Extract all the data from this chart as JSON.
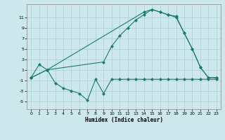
{
  "line1_x": [
    0,
    1,
    2,
    3,
    4,
    5,
    6,
    7,
    8,
    9,
    10,
    11,
    12,
    13,
    14,
    15,
    16,
    17,
    18,
    19,
    20,
    21,
    22,
    23
  ],
  "line1_y": [
    -0.5,
    2.0,
    1.0,
    -1.5,
    -2.5,
    -3.0,
    -3.5,
    -4.8,
    -0.8,
    -3.5,
    -0.8,
    -0.8,
    -0.8,
    -0.8,
    -0.8,
    -0.8,
    -0.8,
    -0.8,
    -0.8,
    -0.8,
    -0.8,
    -0.8,
    -0.8,
    -0.8
  ],
  "line2_x": [
    0,
    2,
    9,
    10,
    11,
    12,
    13,
    14,
    15,
    16,
    17,
    18,
    19,
    20,
    21,
    22,
    23
  ],
  "line2_y": [
    -0.5,
    1.0,
    2.5,
    5.5,
    7.5,
    9.0,
    10.5,
    11.5,
    12.5,
    12.0,
    11.5,
    11.0,
    8.0,
    5.0,
    1.5,
    -0.5,
    -0.5
  ],
  "line3_x": [
    0,
    2,
    14,
    15,
    16,
    17,
    18,
    19,
    20,
    21,
    22,
    23
  ],
  "line3_y": [
    -0.5,
    1.0,
    12.0,
    12.5,
    12.0,
    11.5,
    11.2,
    8.0,
    5.0,
    1.5,
    -0.5,
    -0.5
  ],
  "line_color": "#1a7a6e",
  "bg_color": "#cce8ec",
  "grid_color": "#aacdd4",
  "xlabel": "Humidex (Indice chaleur)",
  "xlim": [
    -0.5,
    23.5
  ],
  "ylim": [
    -6.5,
    13.5
  ],
  "yticks": [
    -5,
    -3,
    -1,
    1,
    3,
    5,
    7,
    9,
    11
  ],
  "xticks": [
    0,
    1,
    2,
    3,
    4,
    5,
    6,
    7,
    8,
    9,
    10,
    11,
    12,
    13,
    14,
    15,
    16,
    17,
    18,
    19,
    20,
    21,
    22,
    23
  ]
}
